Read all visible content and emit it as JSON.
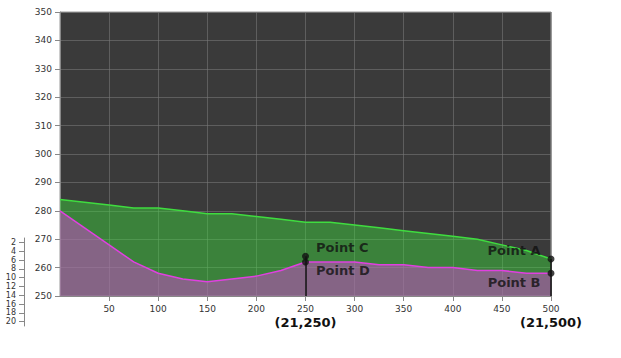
{
  "chart_data": {
    "type": "surface",
    "x": [
      0,
      25,
      50,
      75,
      100,
      125,
      150,
      175,
      200,
      225,
      250,
      275,
      300,
      325,
      350,
      375,
      400,
      425,
      450,
      475,
      500
    ],
    "xlim": [
      0,
      500
    ],
    "xticks": [
      50,
      100,
      150,
      200,
      250,
      300,
      350,
      400,
      450,
      500
    ],
    "ylim": [
      250,
      350
    ],
    "yticks": [
      250,
      260,
      270,
      280,
      290,
      300,
      310,
      320,
      330,
      340,
      350
    ],
    "zlim": [
      1,
      21
    ],
    "zticks": [
      2,
      4,
      6,
      8,
      10,
      12,
      14,
      16,
      18,
      20
    ],
    "grid": true,
    "series": [
      {
        "color": "#3fdc3f",
        "values": [
          284,
          283,
          282,
          281,
          281,
          280,
          279,
          279,
          278,
          277,
          276,
          276,
          275,
          274,
          273,
          272,
          271,
          270,
          268,
          266,
          263
        ]
      },
      {
        "color": "#e040e0",
        "values": [
          280,
          274,
          268,
          262,
          258,
          256,
          255,
          256,
          257,
          259,
          262,
          262,
          262,
          261,
          261,
          260,
          260,
          259,
          259,
          258,
          258
        ]
      }
    ],
    "points": [
      {
        "label": "Point A",
        "x": 500,
        "y": 263
      },
      {
        "label": "Point B",
        "x": 500,
        "y": 258
      },
      {
        "label": "Point C",
        "x": 250,
        "y": 264
      },
      {
        "label": "Point D",
        "x": 250,
        "y": 262
      }
    ],
    "annotations": [
      {
        "text": "(21,250)",
        "x": 250,
        "y": 264
      },
      {
        "text": "(21,500)",
        "x": 500,
        "y": 263
      }
    ]
  }
}
